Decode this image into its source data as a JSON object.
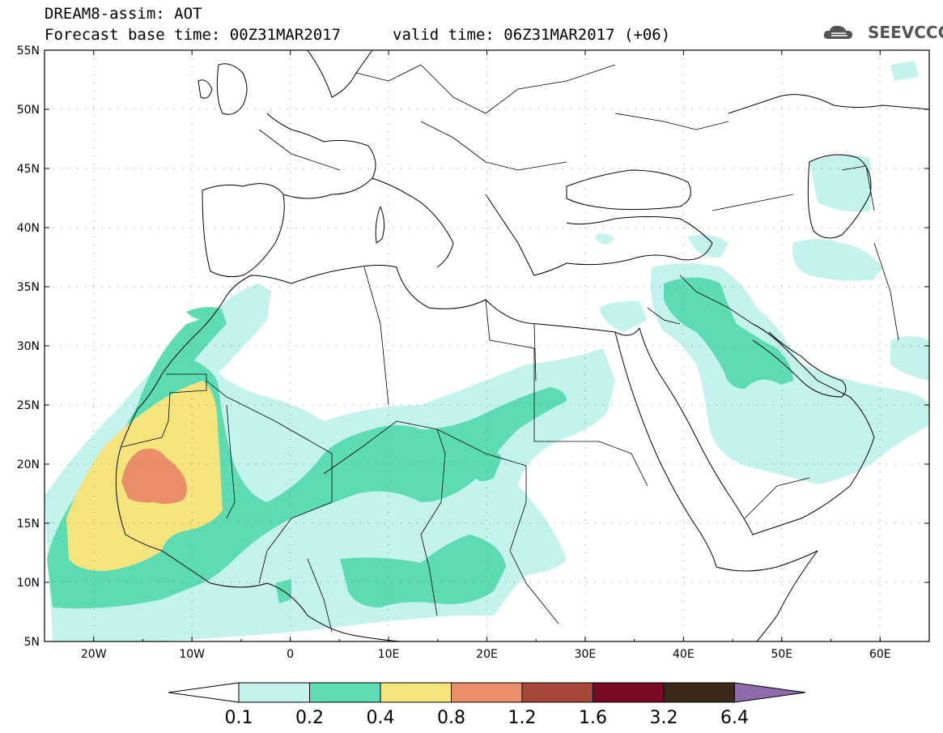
{
  "title": {
    "product": "DREAM8-assim: AOT",
    "base_time": "Forecast base time: 00Z31MAR2017",
    "valid_time": "valid time: 06Z31MAR2017 (+06)"
  },
  "logo": {
    "text": "SEEVCCC",
    "icon": "cloud-icon"
  },
  "map": {
    "lat_labels": [
      "55N",
      "50N",
      "45N",
      "40N",
      "35N",
      "30N",
      "25N",
      "20N",
      "15N",
      "10N",
      "5N"
    ],
    "lon_labels": [
      "20W",
      "10W",
      "0",
      "10E",
      "20E",
      "30E",
      "40E",
      "50E",
      "60E"
    ],
    "lon_range": [
      -25,
      65
    ],
    "lat_range": [
      5,
      55
    ],
    "grid": "dotted"
  },
  "colorbar": {
    "levels": [
      "0.1",
      "0.2",
      "0.4",
      "0.8",
      "1.2",
      "1.6",
      "3.2",
      "6.4"
    ],
    "colors": [
      "#c4f2ec",
      "#5ddcb4",
      "#f5e47c",
      "#e88f6a",
      "#a8483a",
      "#7a0a22",
      "#3a2818",
      "#8e6cac"
    ],
    "under_color": "#ffffff"
  }
}
